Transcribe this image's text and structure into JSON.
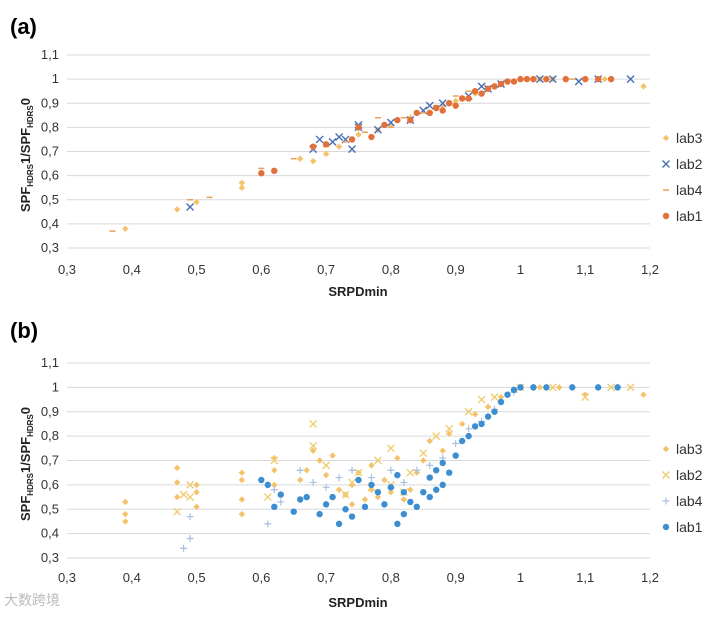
{
  "watermark": "大数跨境",
  "chart_data": [
    {
      "type": "scatter",
      "panel_label": "(a)",
      "xlabel": "SRPDmin",
      "ylabel": "SPF",
      "ylabel_sub1": "HDRS",
      "ylabel_mid": "1/SPF",
      "ylabel_sub2": "HDRS",
      "ylabel_end": "0",
      "xlim": [
        0.3,
        1.2
      ],
      "ylim": [
        0.3,
        1.1
      ],
      "xticks": [
        "0,3",
        "0,4",
        "0,5",
        "0,6",
        "0,7",
        "0,8",
        "0,9",
        "1",
        "1,1",
        "1,2"
      ],
      "yticks": [
        "0,3",
        "0,4",
        "0,5",
        "0,6",
        "0,7",
        "0,8",
        "0,9",
        "1",
        "1,1"
      ],
      "grid": "horizontal",
      "legend_position": "right",
      "series": [
        {
          "name": "lab3",
          "marker": "diamond",
          "color": "#f5c26b",
          "points": [
            [
              0.39,
              0.38
            ],
            [
              0.47,
              0.46
            ],
            [
              0.5,
              0.49
            ],
            [
              0.57,
              0.55
            ],
            [
              0.57,
              0.57
            ],
            [
              0.62,
              0.62
            ],
            [
              0.66,
              0.67
            ],
            [
              0.68,
              0.66
            ],
            [
              0.7,
              0.69
            ],
            [
              0.72,
              0.72
            ],
            [
              0.75,
              0.77
            ],
            [
              0.78,
              0.79
            ],
            [
              0.8,
              0.81
            ],
            [
              0.83,
              0.84
            ],
            [
              0.86,
              0.86
            ],
            [
              0.88,
              0.89
            ],
            [
              0.9,
              0.91
            ],
            [
              0.93,
              0.94
            ],
            [
              0.96,
              0.97
            ],
            [
              0.98,
              0.99
            ],
            [
              1.0,
              1.0
            ],
            [
              1.03,
              1.0
            ],
            [
              1.05,
              1.0
            ],
            [
              1.1,
              1.0
            ],
            [
              1.13,
              1.0
            ],
            [
              1.19,
              0.97
            ]
          ]
        },
        {
          "name": "lab2",
          "marker": "x",
          "color": "#4a6fb3",
          "points": [
            [
              0.49,
              0.47
            ],
            [
              0.68,
              0.71
            ],
            [
              0.69,
              0.75
            ],
            [
              0.71,
              0.74
            ],
            [
              0.72,
              0.76
            ],
            [
              0.73,
              0.75
            ],
            [
              0.74,
              0.71
            ],
            [
              0.75,
              0.8
            ],
            [
              0.75,
              0.81
            ],
            [
              0.78,
              0.79
            ],
            [
              0.8,
              0.82
            ],
            [
              0.83,
              0.83
            ],
            [
              0.85,
              0.87
            ],
            [
              0.86,
              0.89
            ],
            [
              0.88,
              0.9
            ],
            [
              0.92,
              0.93
            ],
            [
              0.94,
              0.97
            ],
            [
              0.95,
              0.96
            ],
            [
              0.97,
              0.98
            ],
            [
              1.03,
              1.0
            ],
            [
              1.05,
              1.0
            ],
            [
              1.09,
              0.99
            ],
            [
              1.12,
              1.0
            ],
            [
              1.17,
              1.0
            ]
          ]
        },
        {
          "name": "lab4",
          "marker": "dash",
          "color": "#e8a060",
          "points": [
            [
              0.37,
              0.37
            ],
            [
              0.49,
              0.5
            ],
            [
              0.52,
              0.51
            ],
            [
              0.6,
              0.63
            ],
            [
              0.65,
              0.67
            ],
            [
              0.7,
              0.72
            ],
            [
              0.73,
              0.74
            ],
            [
              0.76,
              0.78
            ],
            [
              0.78,
              0.84
            ],
            [
              0.8,
              0.8
            ],
            [
              0.82,
              0.84
            ],
            [
              0.85,
              0.86
            ],
            [
              0.87,
              0.89
            ],
            [
              0.9,
              0.93
            ],
            [
              0.92,
              0.95
            ],
            [
              0.95,
              0.96
            ],
            [
              0.98,
              0.99
            ],
            [
              1.01,
              1.0
            ],
            [
              1.04,
              1.0
            ],
            [
              1.08,
              1.0
            ]
          ]
        },
        {
          "name": "lab1",
          "marker": "circle",
          "color": "#e2703a",
          "points": [
            [
              0.6,
              0.61
            ],
            [
              0.62,
              0.62
            ],
            [
              0.68,
              0.72
            ],
            [
              0.7,
              0.73
            ],
            [
              0.74,
              0.75
            ],
            [
              0.75,
              0.8
            ],
            [
              0.77,
              0.76
            ],
            [
              0.79,
              0.81
            ],
            [
              0.81,
              0.83
            ],
            [
              0.83,
              0.83
            ],
            [
              0.84,
              0.86
            ],
            [
              0.86,
              0.86
            ],
            [
              0.87,
              0.88
            ],
            [
              0.88,
              0.87
            ],
            [
              0.89,
              0.9
            ],
            [
              0.9,
              0.89
            ],
            [
              0.91,
              0.92
            ],
            [
              0.92,
              0.92
            ],
            [
              0.93,
              0.95
            ],
            [
              0.94,
              0.94
            ],
            [
              0.95,
              0.96
            ],
            [
              0.96,
              0.97
            ],
            [
              0.97,
              0.98
            ],
            [
              0.98,
              0.99
            ],
            [
              0.99,
              0.99
            ],
            [
              1.0,
              1.0
            ],
            [
              1.01,
              1.0
            ],
            [
              1.02,
              1.0
            ],
            [
              1.04,
              1.0
            ],
            [
              1.07,
              1.0
            ],
            [
              1.1,
              1.0
            ],
            [
              1.12,
              1.0
            ],
            [
              1.14,
              1.0
            ]
          ]
        }
      ]
    },
    {
      "type": "scatter",
      "panel_label": "(b)",
      "xlabel": "SRPDmin",
      "ylabel": "SPF",
      "ylabel_sub1": "HDRS",
      "ylabel_mid": "1/SPF",
      "ylabel_sub2": "HDRS",
      "ylabel_end": "0",
      "xlim": [
        0.3,
        1.2
      ],
      "ylim": [
        0.3,
        1.1
      ],
      "xticks": [
        "0,3",
        "0,4",
        "0,5",
        "0,6",
        "0,7",
        "0,8",
        "0,9",
        "1",
        "1,1",
        "1,2"
      ],
      "yticks": [
        "0,3",
        "0,4",
        "0,5",
        "0,6",
        "0,7",
        "0,8",
        "0,9",
        "1",
        "1,1"
      ],
      "grid": "horizontal",
      "legend_position": "right",
      "series": [
        {
          "name": "lab3",
          "marker": "diamond",
          "color": "#f5c26b",
          "points": [
            [
              0.39,
              0.45
            ],
            [
              0.39,
              0.48
            ],
            [
              0.39,
              0.53
            ],
            [
              0.47,
              0.55
            ],
            [
              0.47,
              0.61
            ],
            [
              0.47,
              0.67
            ],
            [
              0.5,
              0.51
            ],
            [
              0.5,
              0.57
            ],
            [
              0.5,
              0.6
            ],
            [
              0.57,
              0.48
            ],
            [
              0.57,
              0.54
            ],
            [
              0.57,
              0.62
            ],
            [
              0.57,
              0.65
            ],
            [
              0.62,
              0.6
            ],
            [
              0.62,
              0.66
            ],
            [
              0.62,
              0.71
            ],
            [
              0.66,
              0.62
            ],
            [
              0.67,
              0.66
            ],
            [
              0.68,
              0.74
            ],
            [
              0.69,
              0.7
            ],
            [
              0.7,
              0.64
            ],
            [
              0.71,
              0.72
            ],
            [
              0.72,
              0.58
            ],
            [
              0.73,
              0.56
            ],
            [
              0.74,
              0.52
            ],
            [
              0.74,
              0.6
            ],
            [
              0.75,
              0.65
            ],
            [
              0.76,
              0.54
            ],
            [
              0.77,
              0.58
            ],
            [
              0.77,
              0.68
            ],
            [
              0.78,
              0.55
            ],
            [
              0.79,
              0.62
            ],
            [
              0.8,
              0.57
            ],
            [
              0.81,
              0.71
            ],
            [
              0.82,
              0.54
            ],
            [
              0.83,
              0.58
            ],
            [
              0.84,
              0.65
            ],
            [
              0.85,
              0.7
            ],
            [
              0.86,
              0.78
            ],
            [
              0.88,
              0.74
            ],
            [
              0.89,
              0.81
            ],
            [
              0.91,
              0.85
            ],
            [
              0.93,
              0.89
            ],
            [
              0.95,
              0.92
            ],
            [
              0.97,
              0.96
            ],
            [
              1.0,
              1.0
            ],
            [
              1.03,
              1.0
            ],
            [
              1.06,
              1.0
            ],
            [
              1.1,
              0.97
            ],
            [
              1.15,
              1.0
            ],
            [
              1.19,
              0.97
            ]
          ]
        },
        {
          "name": "lab2",
          "marker": "x",
          "color": "#f0cc70",
          "points": [
            [
              0.47,
              0.49
            ],
            [
              0.48,
              0.56
            ],
            [
              0.49,
              0.6
            ],
            [
              0.49,
              0.55
            ],
            [
              0.61,
              0.55
            ],
            [
              0.62,
              0.7
            ],
            [
              0.68,
              0.76
            ],
            [
              0.68,
              0.85
            ],
            [
              0.7,
              0.68
            ],
            [
              0.73,
              0.56
            ],
            [
              0.74,
              0.61
            ],
            [
              0.75,
              0.65
            ],
            [
              0.77,
              0.59
            ],
            [
              0.78,
              0.7
            ],
            [
              0.8,
              0.6
            ],
            [
              0.8,
              0.75
            ],
            [
              0.82,
              0.57
            ],
            [
              0.83,
              0.65
            ],
            [
              0.85,
              0.73
            ],
            [
              0.87,
              0.8
            ],
            [
              0.89,
              0.83
            ],
            [
              0.92,
              0.9
            ],
            [
              0.94,
              0.95
            ],
            [
              0.96,
              0.96
            ],
            [
              1.0,
              1.0
            ],
            [
              1.05,
              1.0
            ],
            [
              1.1,
              0.96
            ],
            [
              1.14,
              1.0
            ],
            [
              1.17,
              1.0
            ]
          ]
        },
        {
          "name": "lab4",
          "marker": "plus",
          "color": "#a8bfdf",
          "points": [
            [
              0.48,
              0.34
            ],
            [
              0.49,
              0.38
            ],
            [
              0.49,
              0.47
            ],
            [
              0.61,
              0.44
            ],
            [
              0.62,
              0.58
            ],
            [
              0.63,
              0.53
            ],
            [
              0.66,
              0.66
            ],
            [
              0.68,
              0.61
            ],
            [
              0.7,
              0.59
            ],
            [
              0.72,
              0.63
            ],
            [
              0.74,
              0.66
            ],
            [
              0.77,
              0.63
            ],
            [
              0.8,
              0.66
            ],
            [
              0.82,
              0.61
            ],
            [
              0.84,
              0.66
            ],
            [
              0.86,
              0.68
            ],
            [
              0.88,
              0.71
            ],
            [
              0.9,
              0.77
            ],
            [
              0.92,
              0.83
            ],
            [
              0.94,
              0.86
            ],
            [
              0.96,
              0.91
            ],
            [
              0.99,
              0.98
            ],
            [
              1.02,
              1.0
            ]
          ]
        },
        {
          "name": "lab1",
          "marker": "circle",
          "color": "#3d8ed1",
          "points": [
            [
              0.6,
              0.62
            ],
            [
              0.61,
              0.6
            ],
            [
              0.62,
              0.51
            ],
            [
              0.63,
              0.56
            ],
            [
              0.65,
              0.49
            ],
            [
              0.66,
              0.54
            ],
            [
              0.67,
              0.55
            ],
            [
              0.69,
              0.48
            ],
            [
              0.7,
              0.52
            ],
            [
              0.71,
              0.55
            ],
            [
              0.72,
              0.44
            ],
            [
              0.73,
              0.5
            ],
            [
              0.74,
              0.47
            ],
            [
              0.75,
              0.62
            ],
            [
              0.76,
              0.51
            ],
            [
              0.77,
              0.6
            ],
            [
              0.78,
              0.57
            ],
            [
              0.79,
              0.52
            ],
            [
              0.8,
              0.59
            ],
            [
              0.81,
              0.44
            ],
            [
              0.81,
              0.64
            ],
            [
              0.82,
              0.48
            ],
            [
              0.82,
              0.57
            ],
            [
              0.83,
              0.53
            ],
            [
              0.84,
              0.51
            ],
            [
              0.85,
              0.57
            ],
            [
              0.86,
              0.55
            ],
            [
              0.86,
              0.63
            ],
            [
              0.87,
              0.58
            ],
            [
              0.87,
              0.66
            ],
            [
              0.88,
              0.6
            ],
            [
              0.88,
              0.69
            ],
            [
              0.89,
              0.65
            ],
            [
              0.9,
              0.72
            ],
            [
              0.91,
              0.78
            ],
            [
              0.92,
              0.8
            ],
            [
              0.93,
              0.84
            ],
            [
              0.94,
              0.85
            ],
            [
              0.95,
              0.88
            ],
            [
              0.96,
              0.9
            ],
            [
              0.97,
              0.94
            ],
            [
              0.98,
              0.97
            ],
            [
              0.99,
              0.99
            ],
            [
              1.0,
              1.0
            ],
            [
              1.02,
              1.0
            ],
            [
              1.04,
              1.0
            ],
            [
              1.08,
              1.0
            ],
            [
              1.12,
              1.0
            ],
            [
              1.15,
              1.0
            ]
          ]
        }
      ]
    }
  ]
}
